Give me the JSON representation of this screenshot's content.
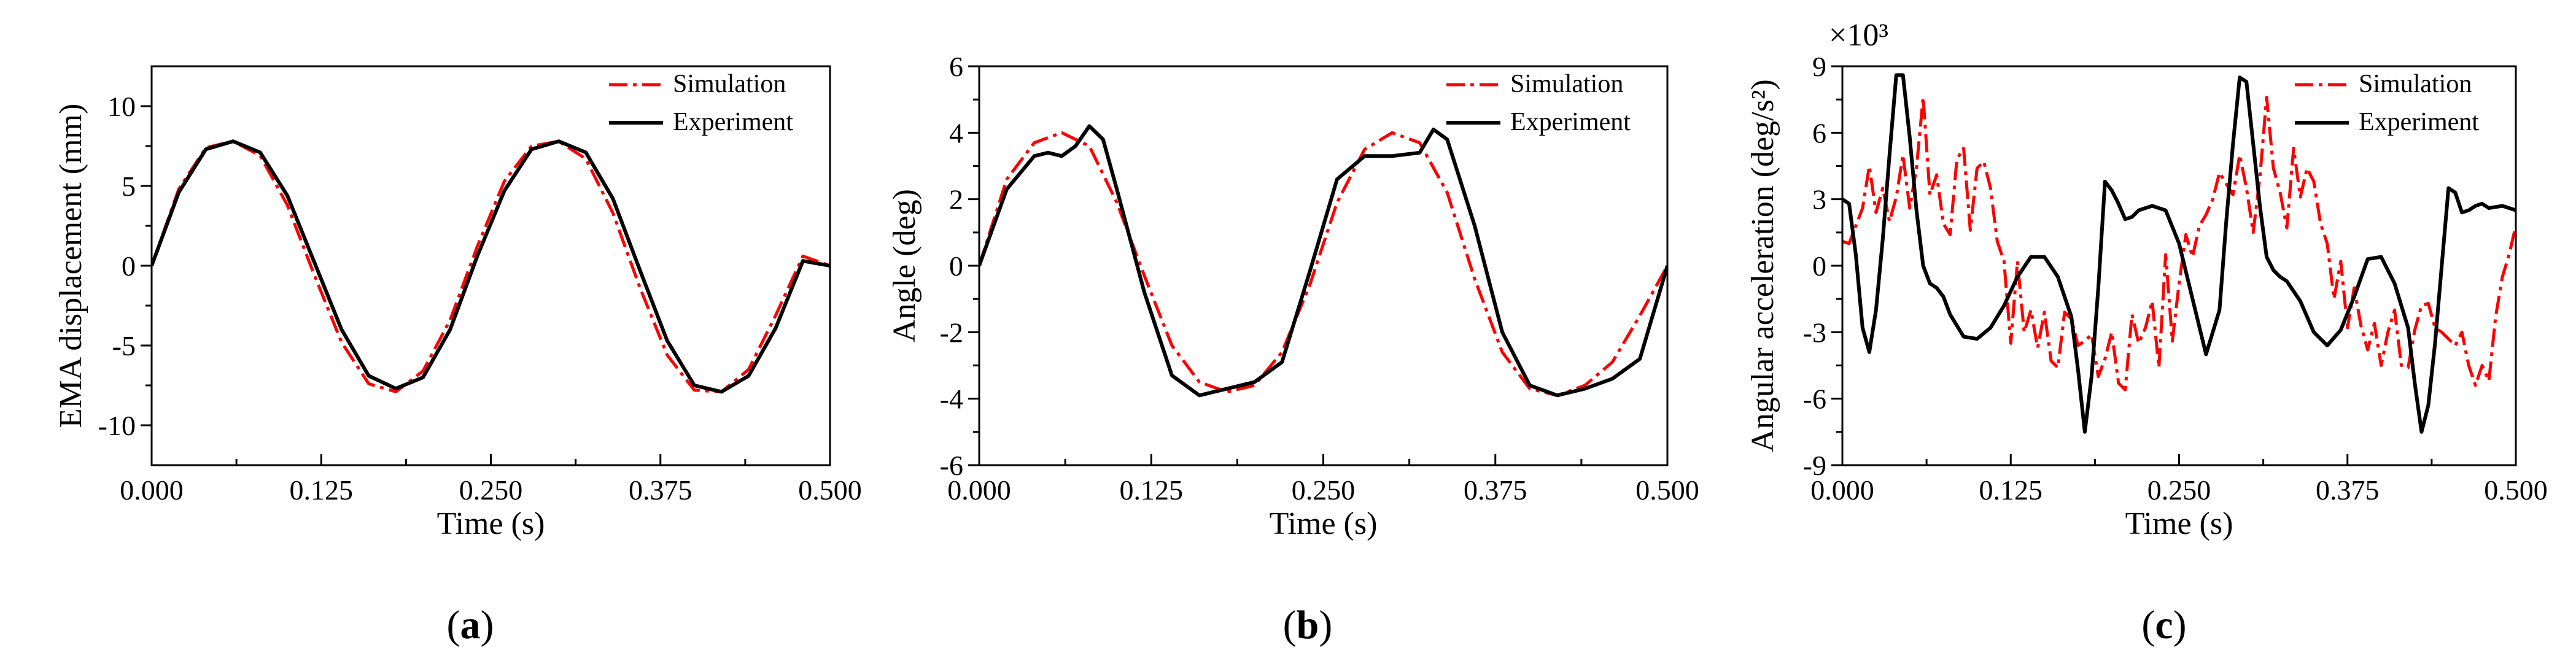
{
  "chart_data": [
    {
      "type": "line",
      "panel_label": "(a)",
      "panel_letter": "a",
      "xlabel": "Time (s)",
      "ylabel": "EMA displacement (mm)",
      "xlim": [
        0,
        0.5
      ],
      "ylim": [
        -12.5,
        12.5
      ],
      "xticks": [
        0,
        0.125,
        0.25,
        0.375,
        0.5
      ],
      "xtick_labels": [
        "0.000",
        "0.125",
        "0.250",
        "0.375",
        "0.500"
      ],
      "yticks": [
        -10,
        -5,
        0,
        5,
        10
      ],
      "ytick_labels": [
        "-10",
        "-5",
        "0",
        "5",
        "10"
      ],
      "legend": [
        "Simulation",
        "Experiment"
      ],
      "legend_position": "top-right",
      "colors": {
        "simulation": "#ff0000",
        "experiment": "#000000"
      },
      "series": [
        {
          "name": "Simulation",
          "x": [
            0,
            0.02,
            0.04,
            0.06,
            0.08,
            0.1,
            0.12,
            0.14,
            0.16,
            0.18,
            0.2,
            0.22,
            0.24,
            0.26,
            0.28,
            0.3,
            0.32,
            0.34,
            0.36,
            0.38,
            0.4,
            0.42,
            0.44,
            0.46,
            0.48,
            0.5
          ],
          "values": [
            0,
            4.8,
            7.4,
            7.8,
            6.9,
            3.8,
            -0.6,
            -4.8,
            -7.4,
            -7.9,
            -6.6,
            -3.4,
            1.2,
            5.3,
            7.5,
            7.8,
            6.7,
            3.3,
            -1.4,
            -5.6,
            -7.8,
            -7.9,
            -6.5,
            -3.1,
            0.6,
            0
          ]
        },
        {
          "name": "Experiment",
          "x": [
            0,
            0.02,
            0.04,
            0.06,
            0.08,
            0.1,
            0.12,
            0.14,
            0.16,
            0.18,
            0.2,
            0.22,
            0.24,
            0.26,
            0.28,
            0.3,
            0.32,
            0.34,
            0.36,
            0.38,
            0.4,
            0.42,
            0.44,
            0.46,
            0.48,
            0.5
          ],
          "values": [
            0,
            4.6,
            7.3,
            7.8,
            7.1,
            4.4,
            0.2,
            -4.0,
            -6.9,
            -7.7,
            -7.0,
            -4.0,
            0.6,
            4.7,
            7.3,
            7.8,
            7.1,
            4.2,
            -0.3,
            -4.7,
            -7.5,
            -7.9,
            -6.9,
            -3.9,
            0.3,
            0
          ]
        }
      ]
    },
    {
      "type": "line",
      "panel_label": "(b)",
      "panel_letter": "b",
      "xlabel": "Time (s)",
      "ylabel": "Angle (deg)",
      "xlim": [
        0,
        0.5
      ],
      "ylim": [
        -6,
        6
      ],
      "xticks": [
        0,
        0.125,
        0.25,
        0.375,
        0.5
      ],
      "xtick_labels": [
        "0.000",
        "0.125",
        "0.250",
        "0.375",
        "0.500"
      ],
      "yticks": [
        -6,
        -4,
        -2,
        0,
        2,
        4,
        6
      ],
      "ytick_labels": [
        "-6",
        "-4",
        "-2",
        "0",
        "2",
        "4",
        "6"
      ],
      "legend": [
        "Simulation",
        "Experiment"
      ],
      "legend_position": "top-right",
      "colors": {
        "simulation": "#ff0000",
        "experiment": "#000000"
      },
      "series": [
        {
          "name": "Simulation",
          "x": [
            0,
            0.02,
            0.04,
            0.06,
            0.08,
            0.1,
            0.12,
            0.14,
            0.16,
            0.18,
            0.2,
            0.22,
            0.24,
            0.26,
            0.28,
            0.3,
            0.32,
            0.34,
            0.36,
            0.38,
            0.4,
            0.42,
            0.44,
            0.46,
            0.48,
            0.5
          ],
          "values": [
            0,
            2.6,
            3.7,
            4.0,
            3.6,
            1.9,
            -0.3,
            -2.4,
            -3.5,
            -3.8,
            -3.6,
            -2.6,
            -0.6,
            1.9,
            3.5,
            4.0,
            3.7,
            2.2,
            -0.4,
            -2.6,
            -3.7,
            -3.9,
            -3.6,
            -2.9,
            -1.5,
            0
          ]
        },
        {
          "name": "Experiment",
          "x": [
            0,
            0.02,
            0.04,
            0.05,
            0.06,
            0.07,
            0.08,
            0.09,
            0.1,
            0.12,
            0.14,
            0.16,
            0.18,
            0.2,
            0.22,
            0.24,
            0.26,
            0.28,
            0.3,
            0.32,
            0.33,
            0.34,
            0.36,
            0.38,
            0.4,
            0.42,
            0.44,
            0.46,
            0.48,
            0.5
          ],
          "values": [
            0,
            2.3,
            3.3,
            3.4,
            3.3,
            3.6,
            4.2,
            3.8,
            2.3,
            -0.8,
            -3.3,
            -3.9,
            -3.7,
            -3.5,
            -2.9,
            -0.2,
            2.6,
            3.3,
            3.3,
            3.4,
            4.1,
            3.8,
            1.2,
            -2.0,
            -3.6,
            -3.9,
            -3.7,
            -3.4,
            -2.8,
            0
          ]
        }
      ]
    },
    {
      "type": "line",
      "panel_label": "(c)",
      "panel_letter": "c",
      "xlabel": "Time (s)",
      "ylabel": "Angular acceleration (deg/s²)",
      "multiplier": "×10³",
      "xlim": [
        0,
        0.5
      ],
      "ylim": [
        -9,
        9
      ],
      "xticks": [
        0,
        0.125,
        0.25,
        0.375,
        0.5
      ],
      "xtick_labels": [
        "0.000",
        "0.125",
        "0.250",
        "0.375",
        "0.500"
      ],
      "yticks": [
        -9,
        -6,
        -3,
        0,
        3,
        6,
        9
      ],
      "ytick_labels": [
        "-9",
        "-6",
        "-3",
        "0",
        "3",
        "6",
        "9"
      ],
      "legend": [
        "Simulation",
        "Experiment"
      ],
      "legend_position": "top-right",
      "colors": {
        "simulation": "#ff0000",
        "experiment": "#000000"
      },
      "series": [
        {
          "name": "Simulation",
          "x": [
            0,
            0.005,
            0.01,
            0.015,
            0.02,
            0.025,
            0.03,
            0.035,
            0.04,
            0.045,
            0.05,
            0.055,
            0.06,
            0.065,
            0.07,
            0.075,
            0.08,
            0.085,
            0.09,
            0.095,
            0.1,
            0.105,
            0.11,
            0.115,
            0.12,
            0.125,
            0.13,
            0.135,
            0.14,
            0.145,
            0.15,
            0.155,
            0.16,
            0.165,
            0.17,
            0.175,
            0.18,
            0.185,
            0.19,
            0.195,
            0.2,
            0.205,
            0.21,
            0.215,
            0.22,
            0.225,
            0.23,
            0.235,
            0.24,
            0.245,
            0.25,
            0.255,
            0.26,
            0.265,
            0.27,
            0.275,
            0.28,
            0.285,
            0.29,
            0.295,
            0.3,
            0.305,
            0.31,
            0.315,
            0.32,
            0.325,
            0.33,
            0.335,
            0.34,
            0.345,
            0.35,
            0.355,
            0.36,
            0.365,
            0.37,
            0.375,
            0.38,
            0.385,
            0.39,
            0.395,
            0.4,
            0.405,
            0.41,
            0.415,
            0.42,
            0.425,
            0.43,
            0.435,
            0.44,
            0.445,
            0.45,
            0.455,
            0.46,
            0.465,
            0.47,
            0.475,
            0.48,
            0.485,
            0.49,
            0.495,
            0.5
          ],
          "values": [
            1.1,
            1.0,
            1.8,
            2.6,
            4.5,
            2.4,
            3.5,
            2.0,
            3.1,
            5.0,
            2.6,
            4.4,
            7.6,
            3.2,
            4.1,
            1.9,
            1.4,
            4.8,
            5.3,
            1.6,
            4.4,
            4.7,
            3.5,
            1.1,
            0.2,
            -3.5,
            0.2,
            -3.0,
            -2.0,
            -3.7,
            -2.1,
            -4.3,
            -4.6,
            -2.1,
            -2.4,
            -3.6,
            -3.4,
            -3.1,
            -5.0,
            -4.2,
            -3.0,
            -5.3,
            -5.6,
            -2.2,
            -3.5,
            -2.8,
            -1.6,
            -4.6,
            0.5,
            -3.4,
            -0.8,
            1.4,
            0.4,
            1.8,
            2.3,
            3.0,
            4.2,
            3.7,
            3.2,
            5.0,
            3.5,
            1.5,
            4.0,
            7.6,
            4.4,
            3.3,
            1.7,
            5.3,
            3.1,
            4.4,
            3.8,
            1.9,
            1.0,
            -1.5,
            0.2,
            -2.8,
            -1.0,
            -2.7,
            -3.8,
            -2.6,
            -4.5,
            -3.0,
            -2.0,
            -4.5,
            -4.6,
            -2.9,
            -1.8,
            -1.7,
            -2.8,
            -3.0,
            -3.3,
            -3.6,
            -3.0,
            -4.5,
            -5.4,
            -4.5,
            -5.2,
            -2.3,
            -0.5,
            0.5,
            1.8
          ]
        },
        {
          "name": "Experiment",
          "x": [
            0,
            0.005,
            0.01,
            0.015,
            0.02,
            0.025,
            0.03,
            0.035,
            0.04,
            0.045,
            0.05,
            0.055,
            0.06,
            0.065,
            0.07,
            0.075,
            0.08,
            0.09,
            0.1,
            0.11,
            0.12,
            0.13,
            0.14,
            0.15,
            0.16,
            0.17,
            0.175,
            0.18,
            0.185,
            0.19,
            0.195,
            0.2,
            0.205,
            0.21,
            0.215,
            0.22,
            0.23,
            0.24,
            0.25,
            0.26,
            0.27,
            0.28,
            0.285,
            0.29,
            0.295,
            0.3,
            0.305,
            0.31,
            0.315,
            0.32,
            0.325,
            0.33,
            0.34,
            0.35,
            0.36,
            0.37,
            0.38,
            0.39,
            0.4,
            0.41,
            0.42,
            0.425,
            0.43,
            0.435,
            0.44,
            0.445,
            0.45,
            0.455,
            0.46,
            0.465,
            0.47,
            0.475,
            0.48,
            0.49,
            0.5
          ],
          "values": [
            3.0,
            2.8,
            0.5,
            -2.8,
            -3.9,
            -2.0,
            1.2,
            5.0,
            8.6,
            8.6,
            5.8,
            2.5,
            0.0,
            -0.8,
            -1.0,
            -1.4,
            -2.2,
            -3.2,
            -3.3,
            -2.8,
            -1.8,
            -0.5,
            0.4,
            0.4,
            -0.5,
            -2.3,
            -4.7,
            -7.5,
            -5.0,
            -1.0,
            3.8,
            3.4,
            2.8,
            2.1,
            2.2,
            2.5,
            2.7,
            2.5,
            1.0,
            -1.5,
            -4.0,
            -2.0,
            2.0,
            5.5,
            8.5,
            8.3,
            5.5,
            2.7,
            0.4,
            -0.2,
            -0.5,
            -0.7,
            -1.6,
            -3.0,
            -3.6,
            -2.9,
            -1.4,
            0.3,
            0.4,
            -0.8,
            -2.8,
            -5.3,
            -7.5,
            -6.3,
            -3.5,
            0.0,
            3.5,
            3.3,
            2.4,
            2.5,
            2.7,
            2.8,
            2.6,
            2.7,
            2.5
          ]
        }
      ]
    }
  ]
}
